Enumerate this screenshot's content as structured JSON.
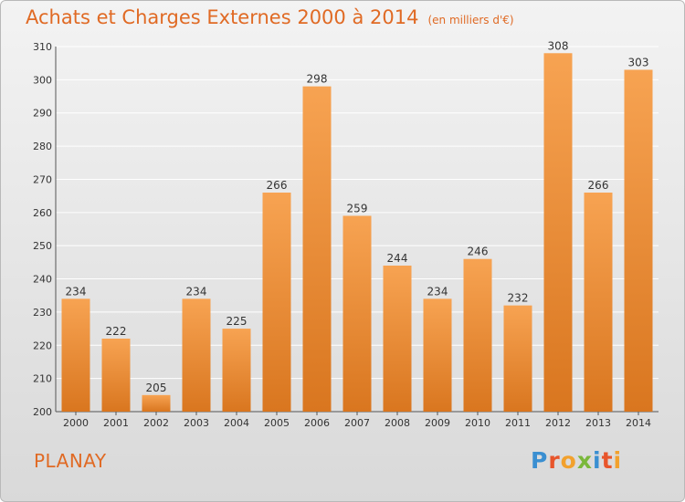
{
  "header": {
    "title": "Achats et Charges Externes 2000 à 2014",
    "subtitle": "(en milliers d'€)"
  },
  "footer": {
    "place": "PLANAY",
    "brand": "Proxiti",
    "brand_letter_colors": [
      "#3a8fd1",
      "#e8552b",
      "#f2a12d",
      "#7ab83b",
      "#3a8fd1",
      "#e8552b",
      "#f2a12d"
    ]
  },
  "colors": {
    "bar_light": "#f7a352",
    "bar_dark": "#d9761f",
    "accent": "#e06a24",
    "grid": "#ffffff"
  },
  "chart_data": {
    "type": "bar",
    "title": "Achats et Charges Externes 2000 à 2014",
    "subtitle": "(en milliers d'€)",
    "categories": [
      "2000",
      "2001",
      "2002",
      "2003",
      "2004",
      "2005",
      "2006",
      "2007",
      "2008",
      "2009",
      "2010",
      "2011",
      "2012",
      "2013",
      "2014"
    ],
    "values": [
      234,
      222,
      205,
      234,
      225,
      266,
      298,
      259,
      244,
      234,
      246,
      232,
      308,
      266,
      303
    ],
    "ylim": [
      200,
      310
    ],
    "yticks": [
      200,
      210,
      220,
      230,
      240,
      250,
      260,
      270,
      280,
      290,
      300,
      310
    ],
    "xlabel": "",
    "ylabel": "",
    "grid": true,
    "data_labels": true
  }
}
